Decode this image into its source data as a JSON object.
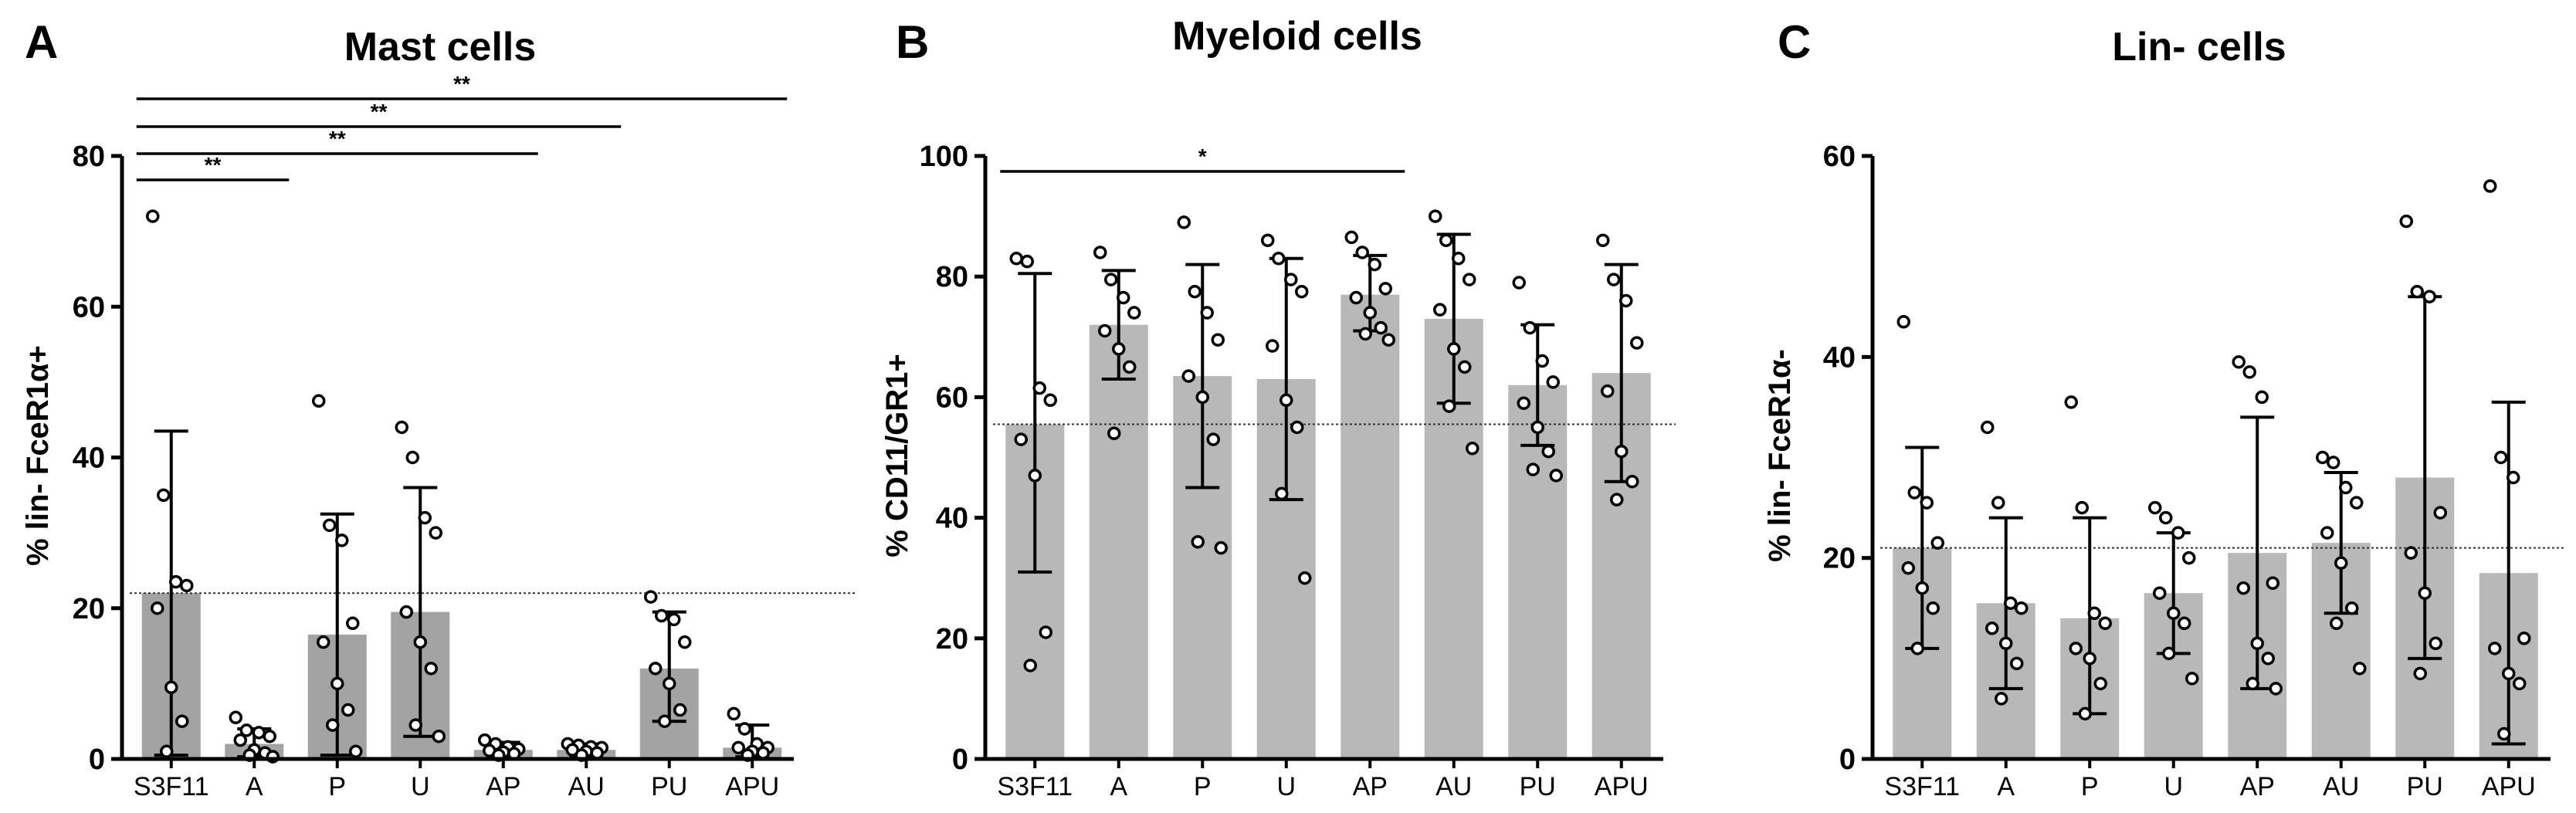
{
  "chart_data": [
    {
      "type": "bar",
      "panel_letter": "A",
      "title": "Mast cells",
      "ylabel": "% lin- FceR1α+",
      "xlabel": "",
      "ylim": [
        0,
        80
      ],
      "yticks": [
        0,
        20,
        40,
        60,
        80
      ],
      "categories": [
        "S3F11",
        "A",
        "P",
        "U",
        "AP",
        "AU",
        "PU",
        "APU"
      ],
      "values": [
        22,
        2,
        16.5,
        19.5,
        1.2,
        1.2,
        12,
        1.5
      ],
      "error_low": [
        0.5,
        0.3,
        0.5,
        3,
        0.3,
        0.3,
        5,
        0.3
      ],
      "error_high": [
        43.5,
        4,
        32.5,
        36,
        2.2,
        2,
        19.5,
        4.5
      ],
      "points": [
        [
          72,
          35,
          23.5,
          23,
          20,
          9.5,
          5,
          1
        ],
        [
          5.5,
          3.8,
          3.5,
          3,
          2.5,
          1.2,
          0.8,
          0.5,
          0.3
        ],
        [
          47.5,
          31,
          29,
          18,
          15.5,
          10,
          6.5,
          4.5,
          1
        ],
        [
          44,
          40,
          32,
          30,
          19.5,
          15.5,
          12,
          4.5,
          3
        ],
        [
          2.5,
          2,
          1.6,
          1.3,
          1.1,
          0.9,
          0.7,
          0.5
        ],
        [
          2,
          1.8,
          1.6,
          1.5,
          1.2,
          1.0,
          0.8,
          0.5
        ],
        [
          21.5,
          19,
          18.5,
          15.5,
          12,
          10,
          6.5,
          5
        ],
        [
          6,
          4,
          2,
          1.5,
          1.5,
          1,
          0.8,
          0.5
        ]
      ],
      "bar_color": "#a3a3a3",
      "reference_line": 22,
      "significance": [
        {
          "from": "S3F11",
          "to": "A",
          "label": "**"
        },
        {
          "from": "S3F11",
          "to": "AP",
          "label": "**"
        },
        {
          "from": "S3F11",
          "to": "AU",
          "label": "**"
        },
        {
          "from": "S3F11",
          "to": "APU",
          "label": "**"
        }
      ]
    },
    {
      "type": "bar",
      "panel_letter": "B",
      "title": "Myeloid cells",
      "ylabel": "% CD11/GR1+",
      "xlabel": "",
      "ylim": [
        0,
        100
      ],
      "yticks": [
        0,
        20,
        40,
        60,
        80,
        100
      ],
      "categories": [
        "S3F11",
        "A",
        "P",
        "U",
        "AP",
        "AU",
        "PU",
        "APU"
      ],
      "values": [
        55.5,
        72,
        63.5,
        63,
        77,
        73,
        62,
        64
      ],
      "error_low": [
        31,
        63,
        45,
        43,
        71,
        59,
        52,
        46
      ],
      "error_high": [
        80.5,
        81,
        82,
        83,
        83.5,
        87,
        72,
        82
      ],
      "points": [
        [
          83,
          82.5,
          61.5,
          59.5,
          53,
          47,
          21,
          15.5
        ],
        [
          84,
          79.5,
          76.5,
          74,
          71,
          68,
          65,
          54
        ],
        [
          89,
          77.5,
          74,
          69.5,
          63.5,
          60,
          53,
          36,
          35
        ],
        [
          86,
          83,
          79.5,
          77.5,
          68.5,
          59.5,
          55,
          44,
          30
        ],
        [
          86.5,
          84,
          82,
          78,
          76.5,
          74,
          71.5,
          70.5,
          69.5
        ],
        [
          90,
          86,
          83,
          79.5,
          74.5,
          68,
          65,
          58.5,
          51.5
        ],
        [
          79,
          71.5,
          66,
          62.5,
          59,
          55,
          51,
          48,
          47
        ],
        [
          86,
          79.5,
          76,
          69,
          61,
          51,
          46,
          43
        ]
      ],
      "bar_color": "#b8b8b8",
      "reference_line": 55.5,
      "significance": [
        {
          "from": "S3F11",
          "to": "AP",
          "label": "*"
        }
      ]
    },
    {
      "type": "bar",
      "panel_letter": "C",
      "title": "Lin- cells",
      "ylabel": "% lin- FceR1α-",
      "xlabel": "",
      "ylim": [
        0,
        60
      ],
      "yticks": [
        0,
        20,
        40,
        60
      ],
      "categories": [
        "S3F11",
        "A",
        "P",
        "U",
        "AP",
        "AU",
        "PU",
        "APU"
      ],
      "values": [
        21,
        15.5,
        14,
        16.5,
        20.5,
        21.5,
        28,
        18.5
      ],
      "error_low": [
        11,
        7,
        4.5,
        10.5,
        7,
        14.5,
        10,
        1.5
      ],
      "error_high": [
        31,
        24,
        24,
        22.5,
        34,
        28.5,
        46,
        35.5
      ],
      "points": [
        [
          43.5,
          26.5,
          25.5,
          21.5,
          19,
          17,
          15,
          11
        ],
        [
          33,
          25.5,
          15.5,
          15,
          13,
          11.5,
          9.5,
          6
        ],
        [
          35.5,
          25,
          14.5,
          13.5,
          11,
          10,
          7.5,
          4.5
        ],
        [
          25,
          24,
          22.5,
          20,
          16.5,
          14.5,
          13.5,
          10.5,
          8
        ],
        [
          39.5,
          38.5,
          36,
          17.5,
          17,
          11.5,
          10,
          7.5,
          7
        ],
        [
          30,
          29.5,
          27,
          25.5,
          22.5,
          19.5,
          15,
          13.5,
          9
        ],
        [
          53.5,
          46.5,
          46,
          24.5,
          20.5,
          16.5,
          11.5,
          8.5
        ],
        [
          57,
          30,
          28,
          12,
          11,
          8.5,
          7.5,
          2.5
        ]
      ],
      "bar_color": "#b8b8b8",
      "reference_line": 21,
      "significance": []
    }
  ]
}
